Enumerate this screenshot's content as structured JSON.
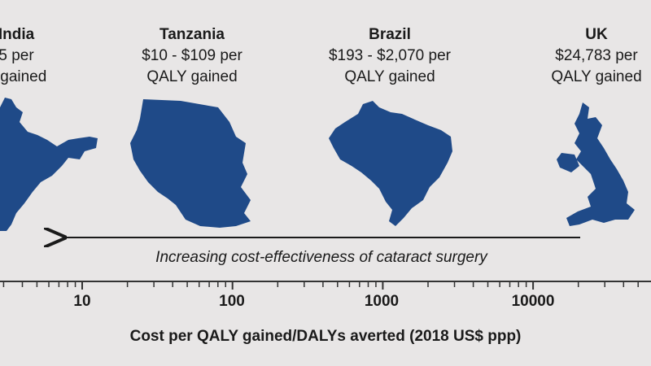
{
  "colors": {
    "map_fill": "#1f4a88",
    "background": "#e8e6e6",
    "text": "#1a1a1a",
    "axis": "#333333"
  },
  "arrow_caption": "Increasing cost-effectiveness of cataract surgery",
  "chart_data": {
    "type": "scatter",
    "x_scale": "log",
    "xlabel": "Cost per QALY gained/DALYs averted (2018 US$ ppp)",
    "xlim": [
      1,
      50000
    ],
    "tick_labels": [
      "10",
      "100",
      "1000",
      "10000"
    ],
    "tick_values": [
      10,
      100,
      1000,
      10000
    ],
    "grid": false,
    "countries": [
      {
        "name": "India",
        "x": 1,
        "lines": [
          "5 per",
          "Y gained"
        ]
      },
      {
        "name": "Tanzania",
        "x": 33,
        "lines": [
          "$10 - $109 per",
          "QALY gained"
        ]
      },
      {
        "name": "Brazil",
        "x": 630,
        "lines": [
          "$193 - $2,070 per",
          "QALY gained"
        ]
      },
      {
        "name": "UK",
        "x": 24783,
        "lines": [
          "$24,783 per",
          "QALY gained"
        ]
      }
    ]
  }
}
